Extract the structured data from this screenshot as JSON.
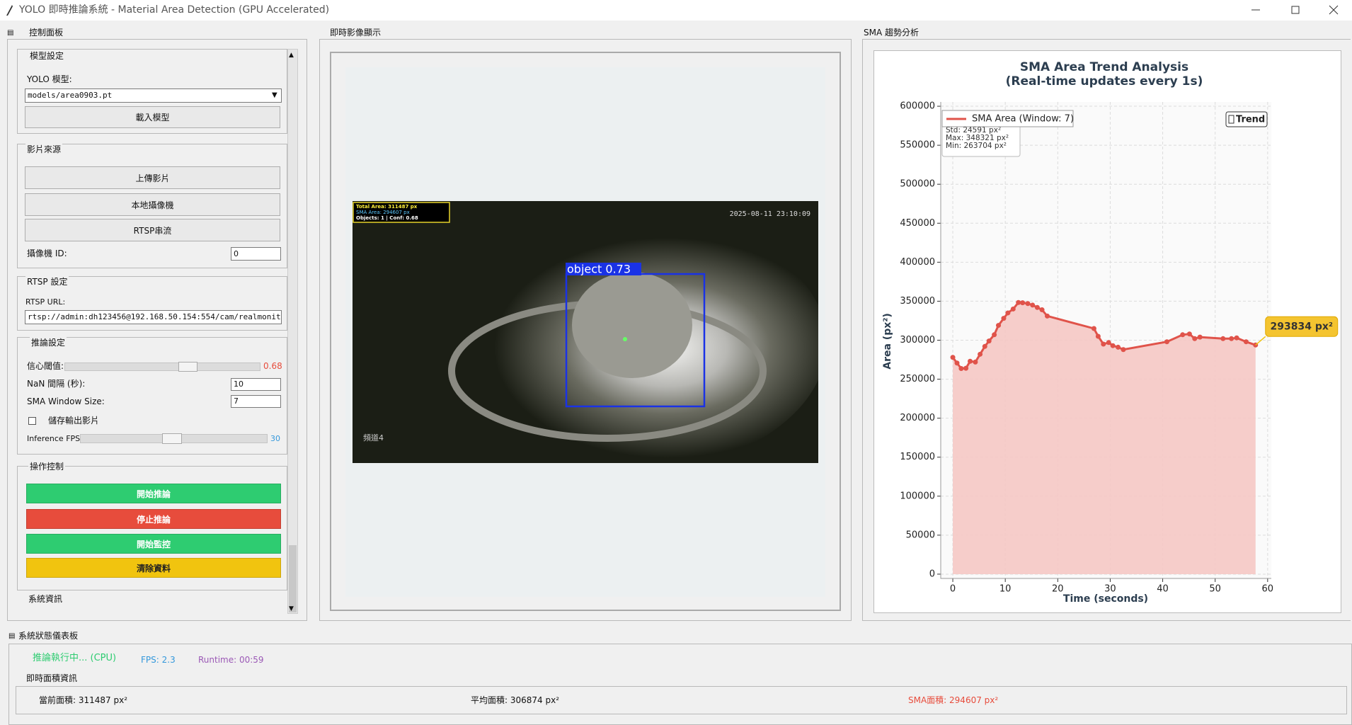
{
  "window_title": "YOLO 即時推論系統 - Material Area Detection (GPU Accelerated)",
  "control_panel": {
    "title": "控制面板",
    "model": {
      "header": "模型設定",
      "label": "YOLO 模型:",
      "path": "models/area0903.pt",
      "load_button": "載入模型"
    },
    "source": {
      "header": "影片來源",
      "buttons": [
        "上傳影片",
        "本地攝像機",
        "RTSP串流"
      ],
      "camera_id_label": "攝像機 ID:",
      "camera_id": 0
    },
    "rtsp": {
      "header": "RTSP 設定",
      "url_label": "RTSP URL:",
      "url": "rtsp://admin:dh123456@192.168.50.154:554/cam/realmonitor?cha"
    },
    "inference": {
      "header": "推論設定",
      "confidence_label": "信心閾值:",
      "confidence": 0.68,
      "nan_label": "NaN 間隔 (秒):",
      "nan_interval": 10,
      "sma_label": "SMA Window Size:",
      "sma_window": 7,
      "save_label": "儲存輸出影片",
      "fps_label": "Inference FPS:",
      "fps": 30
    },
    "actions": {
      "header": "操作控制",
      "buttons": [
        "開始推論",
        "停止推論",
        "開始監控",
        "清除資料"
      ]
    },
    "system_info": {
      "header": "系統資訊"
    }
  },
  "video_panel": {
    "title": "即時影像顯示",
    "overlay": [
      "Total Area: 311487 px",
      "SMA Area: 294607 px",
      "Objects: 1 | Conf: 0.68"
    ],
    "timestamp": "2025-08-11 23:10:09",
    "detection_label": "object 0.73",
    "channel": "頻道4"
  },
  "trend_panel": {
    "title": "SMA 趨勢分析"
  },
  "chart_data": {
    "type": "line",
    "title": "SMA Area Trend Analysis",
    "subtitle": "(Real-time updates every 1s)",
    "x_label": "Time (seconds)",
    "y_label": "Area (px²)",
    "x": [
      0,
      0.8,
      1.6,
      2.5,
      3.3,
      4.3,
      5.2,
      6.1,
      6.9,
      7.9,
      8.7,
      9.7,
      10.5,
      11.5,
      12.5,
      13.3,
      14.3,
      15.2,
      16.1,
      17.0,
      18.0,
      26.9,
      27.7,
      28.7,
      29.7,
      30.5,
      31.5,
      32.5,
      40.8,
      43.8,
      45.1,
      46.1,
      47.1,
      51.5,
      53.1,
      54.1,
      55.9,
      57.7
    ],
    "series": [
      {
        "name": "SMA Area (Window: 7)",
        "color": "#e0534a",
        "fill_color": "#f5c8c4",
        "values": [
          278000,
          270700,
          263704,
          264000,
          273000,
          272000,
          282000,
          292000,
          299000,
          307000,
          319000,
          328000,
          335000,
          340000,
          348321,
          348000,
          347000,
          345000,
          342000,
          339000,
          331000,
          315000,
          305000,
          295000,
          297000,
          293000,
          291000,
          288000,
          298000,
          307000,
          308000,
          302000,
          304000,
          302000,
          302000,
          303000,
          298000,
          293834
        ]
      }
    ],
    "xlim": [
      -2.3,
      60.7
    ],
    "ylim": [
      -5500,
      605500
    ],
    "xticks": [
      0,
      10,
      20,
      30,
      40,
      50,
      60
    ],
    "yticks": [
      0,
      50000,
      100000,
      150000,
      200000,
      250000,
      300000,
      350000,
      400000,
      450000,
      500000,
      550000,
      600000
    ],
    "grid": true,
    "legend": "upper left",
    "stats": [
      "Std: 24591 px²",
      "Max: 348321 px²",
      "Min: 263704 px²"
    ],
    "trend_label": "Trend",
    "annotation": "293834 px²"
  },
  "status": {
    "title": "系統狀態儀表板",
    "state": "推論執行中... (CPU)",
    "fps": "FPS: 2.3",
    "runtime": "Runtime: 00:59",
    "area_header": "即時面積資訊",
    "current": "當前面積: 311487 px²",
    "average": "平均面積: 306874 px²",
    "sma": "SMA面積: 294607 px²"
  }
}
